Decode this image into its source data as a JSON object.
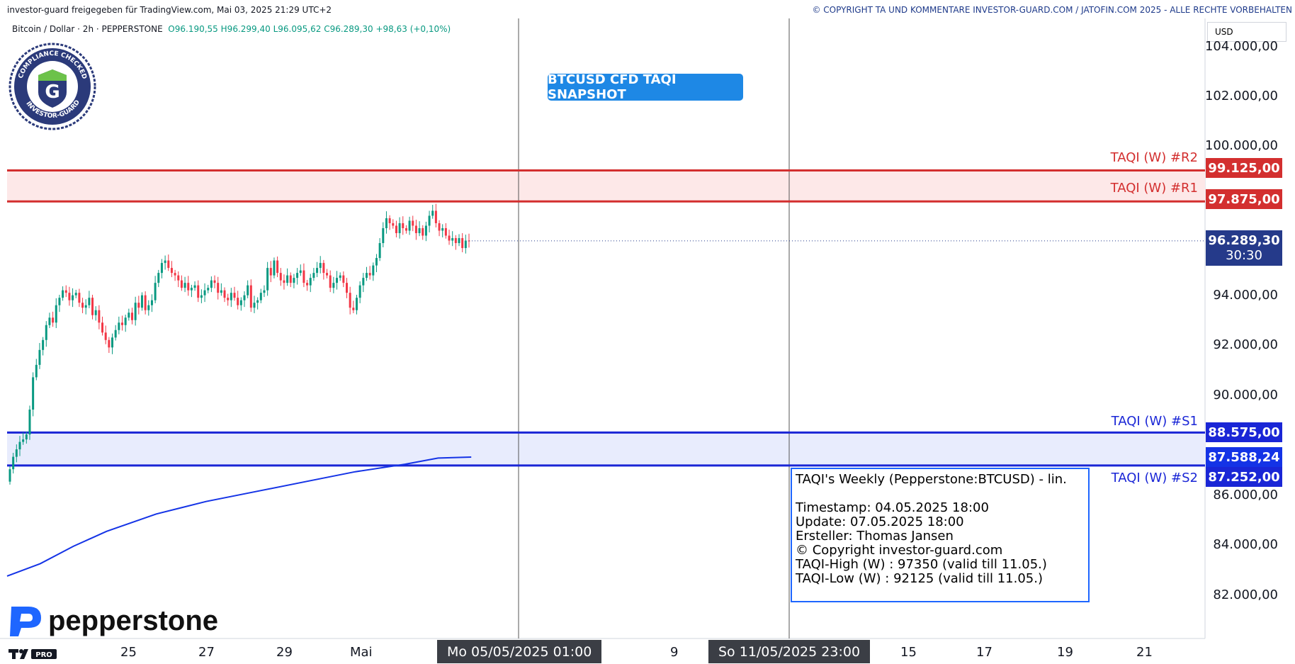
{
  "header": {
    "shared_text": "investor-guard freigegeben für TradingView.com, Mai 03, 2025 21:29 UTC+2",
    "copyright": "© COPYRIGHT TA UND KOMMENTARE INVESTOR-GUARD.COM / JATOFIN.COM 2025 - ALLE RECHTE VORBEHALTEN"
  },
  "symbol": {
    "name": "Bitcoin / Dollar · 2h · PEPPERSTONE",
    "open": "O96.190,55",
    "high": "H96.299,40",
    "low": "L96.095,62",
    "close": "C96.289,30",
    "change": "+98,63 (+0,10%)"
  },
  "snapshot_label": "BTCUSD CFD TAQI SNAPSHOT",
  "currency": "USD",
  "badge": {
    "text": "COMPLIANCE CHECKED · INVESTOR-GUARD",
    "letter": "G"
  },
  "brand": {
    "name": "pepperstone",
    "tv_logo": "TV PRO"
  },
  "price_labels": {
    "r2": "99.125,00",
    "r1": "97.875,00",
    "current": "96.289,30",
    "countdown": "30:30",
    "s1": "88.575,00",
    "ma": "87.588,24",
    "s2": "87.252,00"
  },
  "level_labels": {
    "r2": "TAQI (W) #R2",
    "r1": "TAQI (W) #R1",
    "s1": "TAQI (W) #S1",
    "s2": "TAQI (W) #S2"
  },
  "y_ticks": [
    "104.000,00",
    "102.000,00",
    "100.000,00",
    "94.000,00",
    "92.000,00",
    "90.000,00",
    "86.000,00",
    "84.000,00",
    "82.000,00"
  ],
  "x_ticks": [
    "25",
    "27",
    "29",
    "Mai",
    "9",
    "15",
    "17",
    "19",
    "21"
  ],
  "x_tags": [
    "Mo 05/05/2025   01:00",
    "So 11/05/2025   23:00"
  ],
  "info": {
    "title": "TAQI's Weekly (Pepperstone:BTCUSD) - lin.",
    "timestamp": "Timestamp: 04.05.2025 18:00",
    "update": "Update: 07.05.2025 18:00",
    "author": "Ersteller: Thomas Jansen",
    "copyright": "© Copyright investor-guard.com",
    "high": "TAQI-High (W) : 97350 (valid till 11.05.)",
    "low": "TAQI-Low (W) : 92125 (valid till 11.05.)"
  },
  "colors": {
    "resistance": "#d32f2f",
    "support": "#1a26d6",
    "resistance_zone": "#fde8e8",
    "support_zone": "#e8ecfd",
    "up_candle": "#089981",
    "down_candle": "#f23645",
    "ma_line": "#1433e6",
    "current_price": "#253a8a"
  },
  "chart_data": {
    "type": "candlestick",
    "symbol": "BTCUSD",
    "timeframe": "2h",
    "ylim": [
      81000,
      105500
    ],
    "levels": [
      {
        "name": "TAQI (W) #R2",
        "value": 99125
      },
      {
        "name": "TAQI (W) #R1",
        "value": 97875
      },
      {
        "name": "TAQI (W) #S1",
        "value": 88575
      },
      {
        "name": "TAQI (W) #S2",
        "value": 87252
      }
    ],
    "last_price": 96289.3,
    "closes": [
      87100,
      87600,
      87900,
      88200,
      88300,
      88500,
      89500,
      90800,
      91300,
      91900,
      92300,
      92900,
      93200,
      93000,
      93700,
      94000,
      94300,
      94200,
      93900,
      94100,
      94200,
      93800,
      93600,
      93700,
      94000,
      93300,
      93500,
      93000,
      92600,
      92300,
      92000,
      92400,
      92700,
      93000,
      92900,
      93200,
      93400,
      93100,
      93800,
      93600,
      94100,
      93500,
      93700,
      93900,
      94600,
      95000,
      95400,
      95500,
      95200,
      95000,
      94900,
      94700,
      94400,
      94600,
      94300,
      94400,
      94500,
      94000,
      94100,
      94300,
      94400,
      94700,
      94600,
      94200,
      94300,
      94000,
      93900,
      94200,
      94000,
      93700,
      93900,
      94100,
      94500,
      93600,
      93800,
      93900,
      94200,
      94300,
      95200,
      94900,
      95500,
      95000,
      94700,
      94600,
      94900,
      94600,
      94800,
      95000,
      95100,
      94600,
      94500,
      94800,
      95000,
      95200,
      95400,
      95000,
      94900,
      94400,
      94600,
      94800,
      94900,
      94600,
      94200,
      93600,
      93500,
      94000,
      94500,
      94800,
      95000,
      94900,
      95300,
      95600,
      96200,
      96800,
      97200,
      97000,
      96900,
      96600,
      97000,
      96800,
      96700,
      97100,
      96900,
      96600,
      96800,
      96500,
      96900,
      97300,
      97500,
      97000,
      96700,
      96800,
      96500,
      96300,
      96400,
      96200,
      96400,
      96000,
      96300,
      96289
    ],
    "moving_average": [
      [
        0,
        82800
      ],
      [
        40,
        83300
      ],
      [
        80,
        84000
      ],
      [
        120,
        84600
      ],
      [
        180,
        85300
      ],
      [
        240,
        85800
      ],
      [
        300,
        86200
      ],
      [
        360,
        86600
      ],
      [
        420,
        87000
      ],
      [
        480,
        87300
      ],
      [
        520,
        87550
      ],
      [
        560,
        87588
      ]
    ]
  }
}
